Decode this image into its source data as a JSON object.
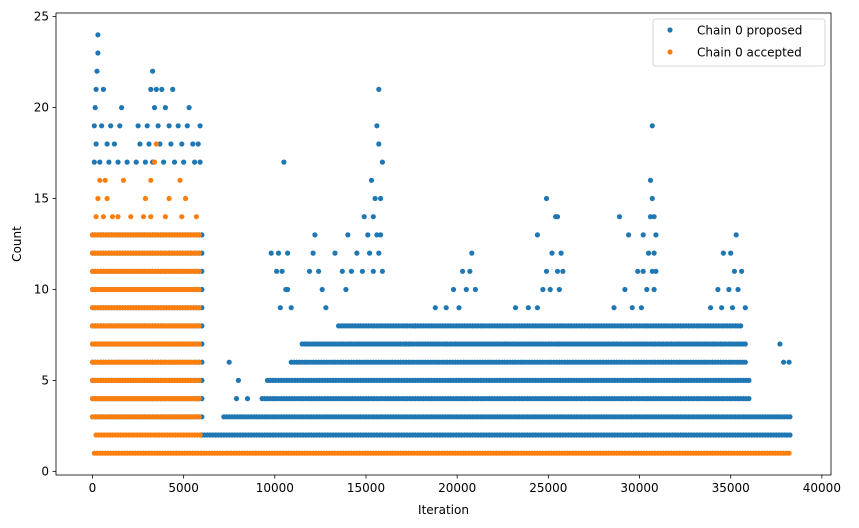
{
  "chart_data": {
    "type": "scatter",
    "title": "",
    "xlabel": "Iteration",
    "ylabel": "Count",
    "xlim": [
      -2000,
      40500
    ],
    "ylim": [
      -0.2,
      25.2
    ],
    "x_ticks": [
      0,
      5000,
      10000,
      15000,
      20000,
      25000,
      30000,
      35000,
      40000
    ],
    "x_tick_labels": [
      "0",
      "5000",
      "10000",
      "15000",
      "20000",
      "25000",
      "30000",
      "35000",
      "40000"
    ],
    "y_ticks": [
      0,
      5,
      10,
      15,
      20,
      25
    ],
    "y_tick_labels": [
      "0",
      "5",
      "10",
      "15",
      "20",
      "25"
    ],
    "grid": false,
    "legend_position": "top-right",
    "series": [
      {
        "name": "Chain 0 proposed",
        "color": "#1f77b4",
        "points": [
          [
            300,
            24
          ],
          [
            300,
            23
          ],
          [
            250,
            22
          ],
          [
            200,
            21
          ],
          [
            600,
            21
          ],
          [
            150,
            20
          ],
          [
            1600,
            20
          ],
          [
            3300,
            22
          ],
          [
            3200,
            21
          ],
          [
            3500,
            21
          ],
          [
            3800,
            21
          ],
          [
            4400,
            21
          ],
          [
            3400,
            20
          ],
          [
            4000,
            20
          ],
          [
            5300,
            20
          ],
          [
            100,
            19
          ],
          [
            500,
            19
          ],
          [
            1000,
            19
          ],
          [
            1500,
            19
          ],
          [
            2500,
            19
          ],
          [
            3000,
            19
          ],
          [
            3600,
            19
          ],
          [
            4200,
            19
          ],
          [
            4700,
            19
          ],
          [
            5200,
            19
          ],
          [
            5900,
            19
          ],
          [
            200,
            18
          ],
          [
            800,
            18
          ],
          [
            1200,
            18
          ],
          [
            2600,
            18
          ],
          [
            3100,
            18
          ],
          [
            3700,
            18
          ],
          [
            4300,
            18
          ],
          [
            4900,
            18
          ],
          [
            5500,
            18
          ],
          [
            5800,
            18
          ],
          [
            100,
            17
          ],
          [
            400,
            17
          ],
          [
            900,
            17
          ],
          [
            1400,
            17
          ],
          [
            1900,
            17
          ],
          [
            2400,
            17
          ],
          [
            2900,
            17
          ],
          [
            3300,
            17
          ],
          [
            3900,
            17
          ],
          [
            4500,
            17
          ],
          [
            5000,
            17
          ],
          [
            5600,
            17
          ],
          [
            5900,
            17
          ],
          [
            10500,
            17
          ],
          [
            15700,
            21
          ],
          [
            15600,
            19
          ],
          [
            15700,
            18
          ],
          [
            15900,
            17
          ],
          [
            15300,
            16
          ],
          [
            15500,
            15
          ],
          [
            15800,
            15
          ],
          [
            14900,
            14
          ],
          [
            15400,
            14
          ],
          [
            14000,
            13
          ],
          [
            15100,
            13
          ],
          [
            15600,
            13
          ],
          [
            15800,
            13
          ],
          [
            9800,
            12
          ],
          [
            10200,
            12
          ],
          [
            10700,
            12
          ],
          [
            10100,
            11
          ],
          [
            10400,
            11
          ],
          [
            10600,
            10
          ],
          [
            10700,
            10
          ],
          [
            10300,
            9
          ],
          [
            10900,
            9
          ],
          [
            12200,
            13
          ],
          [
            12100,
            12
          ],
          [
            11900,
            11
          ],
          [
            12400,
            11
          ],
          [
            12600,
            10
          ],
          [
            12800,
            9
          ],
          [
            13300,
            12
          ],
          [
            13700,
            11
          ],
          [
            13900,
            10
          ],
          [
            14200,
            11
          ],
          [
            14500,
            12
          ],
          [
            14800,
            11
          ],
          [
            15200,
            12
          ],
          [
            15400,
            11
          ],
          [
            15700,
            12
          ],
          [
            15900,
            11
          ],
          [
            20300,
            11
          ],
          [
            20700,
            11
          ],
          [
            20800,
            12
          ],
          [
            20500,
            10
          ],
          [
            21000,
            10
          ],
          [
            19800,
            10
          ],
          [
            19400,
            9
          ],
          [
            18800,
            9
          ],
          [
            20100,
            9
          ],
          [
            24900,
            15
          ],
          [
            25400,
            14
          ],
          [
            25500,
            14
          ],
          [
            24400,
            13
          ],
          [
            25200,
            12
          ],
          [
            25700,
            12
          ],
          [
            24900,
            11
          ],
          [
            25500,
            11
          ],
          [
            25800,
            11
          ],
          [
            24700,
            10
          ],
          [
            25100,
            10
          ],
          [
            25600,
            10
          ],
          [
            23200,
            9
          ],
          [
            23900,
            9
          ],
          [
            24400,
            9
          ],
          [
            30700,
            19
          ],
          [
            30600,
            16
          ],
          [
            30700,
            15
          ],
          [
            28900,
            14
          ],
          [
            30600,
            14
          ],
          [
            30800,
            14
          ],
          [
            29400,
            13
          ],
          [
            30200,
            13
          ],
          [
            30900,
            13
          ],
          [
            30500,
            12
          ],
          [
            30800,
            12
          ],
          [
            29900,
            11
          ],
          [
            30200,
            11
          ],
          [
            30700,
            11
          ],
          [
            30900,
            11
          ],
          [
            29200,
            10
          ],
          [
            30400,
            10
          ],
          [
            30800,
            10
          ],
          [
            28600,
            9
          ],
          [
            29600,
            9
          ],
          [
            30100,
            9
          ],
          [
            35300,
            13
          ],
          [
            34600,
            12
          ],
          [
            35000,
            12
          ],
          [
            35200,
            11
          ],
          [
            35600,
            11
          ],
          [
            34300,
            10
          ],
          [
            34900,
            10
          ],
          [
            35400,
            10
          ],
          [
            33900,
            9
          ],
          [
            34500,
            9
          ],
          [
            35100,
            9
          ],
          [
            35800,
            9
          ],
          [
            37700,
            7
          ],
          [
            38200,
            6
          ],
          [
            37900,
            6
          ],
          [
            7500,
            6
          ],
          [
            8000,
            5
          ],
          [
            17200,
            7
          ],
          [
            17700,
            8
          ],
          [
            7900,
            4
          ],
          [
            8500,
            4
          ]
        ],
        "dense_rows": [
          {
            "y": 13,
            "x_range": [
              0,
              6000
            ]
          },
          {
            "y": 12,
            "x_range": [
              0,
              6000
            ]
          },
          {
            "y": 11,
            "x_range": [
              0,
              6000
            ]
          },
          {
            "y": 10,
            "x_range": [
              0,
              6000
            ]
          },
          {
            "y": 9,
            "x_range": [
              0,
              6000
            ]
          },
          {
            "y": 8,
            "x_range": [
              0,
              6000
            ]
          },
          {
            "y": 7,
            "x_range": [
              0,
              6000
            ]
          },
          {
            "y": 6,
            "x_range": [
              0,
              6000
            ]
          },
          {
            "y": 5,
            "x_range": [
              0,
              6000
            ]
          },
          {
            "y": 4,
            "x_range": [
              0,
              6000
            ]
          },
          {
            "y": 3,
            "x_range": [
              0,
              6000
            ]
          },
          {
            "y": 2,
            "x_range": [
              6000,
              38300
            ]
          },
          {
            "y": 3,
            "x_range": [
              7200,
              38300
            ]
          },
          {
            "y": 4,
            "x_range": [
              9300,
              36100
            ]
          },
          {
            "y": 5,
            "x_range": [
              9600,
              36000
            ]
          },
          {
            "y": 6,
            "x_range": [
              10900,
              35900
            ]
          },
          {
            "y": 7,
            "x_range": [
              11500,
              35900
            ]
          },
          {
            "y": 8,
            "x_range": [
              13500,
              35600
            ]
          }
        ]
      },
      {
        "name": "Chain 0 accepted",
        "color": "#ff7f0e",
        "points": [
          [
            400,
            16
          ],
          [
            700,
            16
          ],
          [
            1700,
            16
          ],
          [
            3400,
            17
          ],
          [
            3200,
            16
          ],
          [
            4800,
            16
          ],
          [
            3500,
            18
          ],
          [
            300,
            15
          ],
          [
            800,
            15
          ],
          [
            2900,
            15
          ],
          [
            4200,
            15
          ],
          [
            5100,
            15
          ],
          [
            200,
            14
          ],
          [
            600,
            14
          ],
          [
            1100,
            14
          ],
          [
            1400,
            14
          ],
          [
            2100,
            14
          ],
          [
            2800,
            14
          ],
          [
            3200,
            14
          ],
          [
            4000,
            14
          ],
          [
            4900,
            14
          ],
          [
            5700,
            14
          ]
        ],
        "dense_rows": [
          {
            "y": 13,
            "x_range": [
              0,
              5900
            ]
          },
          {
            "y": 12,
            "x_range": [
              0,
              5900
            ]
          },
          {
            "y": 11,
            "x_range": [
              0,
              5900
            ]
          },
          {
            "y": 10,
            "x_range": [
              0,
              5900
            ]
          },
          {
            "y": 9,
            "x_range": [
              0,
              5900
            ]
          },
          {
            "y": 8,
            "x_range": [
              0,
              5900
            ]
          },
          {
            "y": 7,
            "x_range": [
              0,
              5900
            ]
          },
          {
            "y": 6,
            "x_range": [
              0,
              5900
            ]
          },
          {
            "y": 5,
            "x_range": [
              0,
              5900
            ]
          },
          {
            "y": 4,
            "x_range": [
              0,
              5900
            ]
          },
          {
            "y": 3,
            "x_range": [
              0,
              5900
            ]
          },
          {
            "y": 2,
            "x_range": [
              200,
              5900
            ]
          },
          {
            "y": 1,
            "x_range": [
              100,
              38300
            ]
          }
        ]
      }
    ]
  }
}
